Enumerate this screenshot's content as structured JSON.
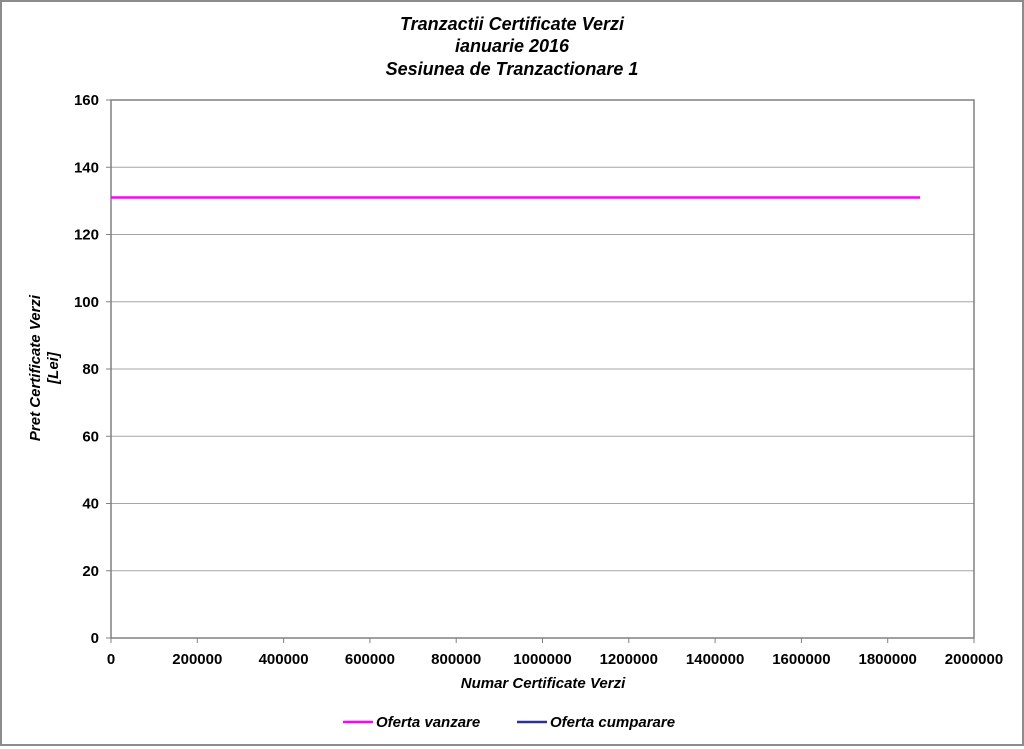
{
  "chart_data": {
    "type": "line",
    "title_lines": [
      "Tranzactii Certificate Verzi",
      "ianuarie 2016",
      "Sesiunea de Tranzactionare 1"
    ],
    "xlabel": "Numar Certificate Verzi",
    "ylabel_lines": [
      "Pret Certificate Verzi",
      "[Lei]"
    ],
    "xlim": [
      0,
      2000000
    ],
    "ylim": [
      0,
      160
    ],
    "x_ticks": [
      0,
      200000,
      400000,
      600000,
      800000,
      1000000,
      1200000,
      1400000,
      1600000,
      1800000,
      2000000
    ],
    "y_ticks": [
      0,
      20,
      40,
      60,
      80,
      100,
      120,
      140,
      160
    ],
    "grid": true,
    "legend_position": "bottom",
    "series": [
      {
        "name": "Oferta vanzare",
        "color": "#ff00ff",
        "points": [
          [
            0,
            131
          ],
          [
            1875000,
            131
          ]
        ]
      },
      {
        "name": "Oferta cumparare",
        "color": "#2e3192",
        "points": []
      }
    ]
  }
}
